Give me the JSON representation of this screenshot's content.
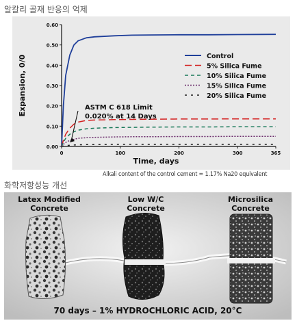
{
  "section1_title": "알칼리 골재 반응의 억제",
  "section2_title": "화학저항성능 개선",
  "note": "Alkali content of the control cement = 1.17% Na20 equivalent",
  "chart_data": {
    "type": "line",
    "title": "",
    "xlabel": "Time, days",
    "ylabel": "Expansion, 0/0",
    "xlim": [
      0,
      365
    ],
    "ylim": [
      0,
      0.6
    ],
    "x_ticks": [
      "0",
      "100",
      "200",
      "300",
      "365"
    ],
    "y_ticks": [
      "0.00",
      "0.10",
      "0.20",
      "0.30",
      "0.40",
      "0.50",
      "0.60"
    ],
    "grid": false,
    "legend_position": "right",
    "annotation": {
      "line1": "ASTM C 618 Limit",
      "line2": "0.020% at 14 Days",
      "target": [
        14,
        0.02
      ]
    },
    "x": [
      0,
      3,
      7,
      14,
      21,
      28,
      42,
      56,
      90,
      120,
      150,
      200,
      250,
      300,
      365
    ],
    "series": [
      {
        "name": "Control",
        "color": "#1f3f9a",
        "dash": "",
        "values": [
          0.0,
          0.2,
          0.35,
          0.45,
          0.5,
          0.52,
          0.535,
          0.54,
          0.545,
          0.548,
          0.549,
          0.55,
          0.55,
          0.551,
          0.552
        ]
      },
      {
        "name": "5% Silica Fume",
        "color": "#d42020",
        "dash": "10,5",
        "values": [
          0.0,
          0.03,
          0.06,
          0.09,
          0.11,
          0.12,
          0.128,
          0.13,
          0.132,
          0.133,
          0.134,
          0.135,
          0.135,
          0.136,
          0.136
        ]
      },
      {
        "name": "10% Silica Fume",
        "color": "#1a7a5a",
        "dash": "5,4",
        "values": [
          0.0,
          0.02,
          0.04,
          0.06,
          0.072,
          0.08,
          0.087,
          0.09,
          0.093,
          0.094,
          0.095,
          0.096,
          0.096,
          0.097,
          0.097
        ]
      },
      {
        "name": "15% Silica Fume",
        "color": "#6a2a6a",
        "dash": "2,2",
        "values": [
          0.0,
          0.01,
          0.02,
          0.03,
          0.035,
          0.04,
          0.043,
          0.045,
          0.047,
          0.048,
          0.048,
          0.049,
          0.049,
          0.05,
          0.05
        ]
      },
      {
        "name": "20% Silica Fume",
        "color": "#202020",
        "dash": "3,6",
        "values": [
          0.0,
          0.002,
          0.004,
          0.006,
          0.007,
          0.008,
          0.009,
          0.009,
          0.01,
          0.01,
          0.01,
          0.01,
          0.01,
          0.01,
          0.01
        ]
      }
    ]
  },
  "photo": {
    "labels": [
      {
        "line1": "Latex Modified",
        "line2": "Concrete"
      },
      {
        "line1": "Low W/C",
        "line2": "Concrete"
      },
      {
        "line1": "Microsilica",
        "line2": "Concrete"
      }
    ],
    "caption": "70 days – 1% HYDROCHLORIC ACID, 20°C"
  }
}
